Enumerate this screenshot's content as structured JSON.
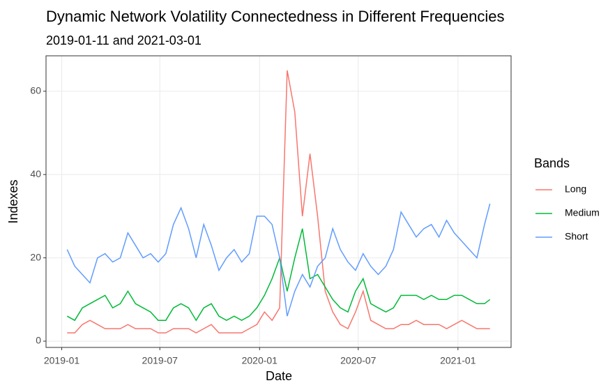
{
  "chart_data": {
    "type": "line",
    "title": "Dynamic Network Volatility Connectedness in Different Frequencies",
    "subtitle": "2019-01-11 and 2021-03-01",
    "x_label": "Date",
    "y_label": "Indexes",
    "legend_title": "Bands",
    "x": [
      "2019-01-11",
      "2019-01-25",
      "2019-02-08",
      "2019-02-22",
      "2019-03-08",
      "2019-03-22",
      "2019-04-05",
      "2019-04-19",
      "2019-05-03",
      "2019-05-17",
      "2019-05-31",
      "2019-06-14",
      "2019-06-28",
      "2019-07-12",
      "2019-07-26",
      "2019-08-09",
      "2019-08-23",
      "2019-09-06",
      "2019-09-20",
      "2019-10-04",
      "2019-10-18",
      "2019-11-01",
      "2019-11-15",
      "2019-11-29",
      "2019-12-13",
      "2019-12-27",
      "2020-01-10",
      "2020-01-24",
      "2020-02-07",
      "2020-02-21",
      "2020-03-06",
      "2020-03-20",
      "2020-04-03",
      "2020-04-17",
      "2020-05-01",
      "2020-05-15",
      "2020-05-29",
      "2020-06-12",
      "2020-06-26",
      "2020-07-10",
      "2020-07-24",
      "2020-08-07",
      "2020-08-21",
      "2020-09-04",
      "2020-09-18",
      "2020-10-02",
      "2020-10-16",
      "2020-10-30",
      "2020-11-13",
      "2020-11-27",
      "2020-12-11",
      "2020-12-25",
      "2021-01-08",
      "2021-01-22",
      "2021-02-05",
      "2021-02-19",
      "2021-03-01"
    ],
    "series": [
      {
        "name": "Long",
        "color": "#F8766D",
        "values": [
          2,
          2,
          4,
          5,
          4,
          3,
          3,
          3,
          4,
          3,
          3,
          3,
          2,
          2,
          3,
          3,
          3,
          2,
          3,
          4,
          2,
          2,
          2,
          2,
          3,
          4,
          7,
          5,
          8,
          65,
          55,
          30,
          45,
          30,
          12,
          7,
          4,
          3,
          7,
          12,
          5,
          4,
          3,
          3,
          4,
          4,
          5,
          4,
          4,
          4,
          3,
          4,
          5,
          4,
          3,
          3,
          3
        ]
      },
      {
        "name": "Medium",
        "color": "#00BA38",
        "values": [
          6,
          5,
          8,
          9,
          10,
          11,
          8,
          9,
          12,
          9,
          8,
          7,
          5,
          5,
          8,
          9,
          8,
          5,
          8,
          9,
          6,
          5,
          6,
          5,
          6,
          8,
          11,
          15,
          20,
          12,
          20,
          27,
          15,
          16,
          13,
          10,
          8,
          7,
          12,
          15,
          9,
          8,
          7,
          8,
          11,
          11,
          11,
          10,
          11,
          10,
          10,
          11,
          11,
          10,
          9,
          9,
          10
        ]
      },
      {
        "name": "Short",
        "color": "#619CFF",
        "values": [
          22,
          18,
          16,
          14,
          20,
          21,
          19,
          20,
          26,
          23,
          20,
          21,
          19,
          21,
          28,
          32,
          27,
          20,
          28,
          23,
          17,
          20,
          22,
          19,
          21,
          30,
          30,
          28,
          20,
          6,
          12,
          16,
          13,
          18,
          20,
          27,
          22,
          19,
          17,
          21,
          18,
          16,
          18,
          22,
          31,
          28,
          25,
          27,
          28,
          25,
          29,
          26,
          24,
          22,
          20,
          28,
          33
        ]
      }
    ],
    "xlim": [
      "2018-12-03",
      "2021-04-09"
    ],
    "xticks": [
      {
        "value": "2019-01-01",
        "label": "2019-01"
      },
      {
        "value": "2019-07-01",
        "label": "2019-07"
      },
      {
        "value": "2020-01-01",
        "label": "2020-01"
      },
      {
        "value": "2020-07-01",
        "label": "2020-07"
      },
      {
        "value": "2021-01-01",
        "label": "2021-01"
      }
    ],
    "ylim": [
      -1.5,
      68.5
    ],
    "yticks": [
      0,
      20,
      40,
      60
    ],
    "grid": true,
    "legend": "right"
  }
}
